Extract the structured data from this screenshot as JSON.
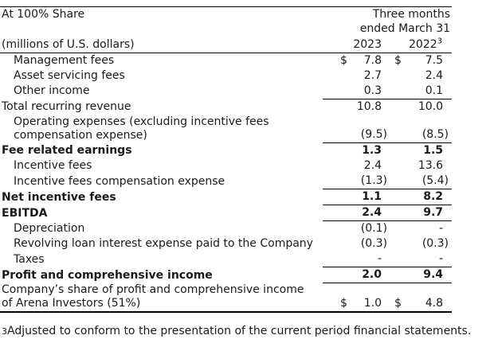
{
  "header": {
    "title": "At 100% Share",
    "period_line1": "Three months",
    "period_line2": "ended March 31",
    "unit_label": "(millions of U.S. dollars)",
    "col_2023": "2023",
    "col_2022": "2022",
    "col_2022_marker": "3"
  },
  "rows": [
    {
      "label": "Management fees",
      "d2023": "$",
      "v2023": "7.8",
      "d2022": "$",
      "v2022": "7.5",
      "indent": true,
      "bold": false,
      "underline": false,
      "twoline": false
    },
    {
      "label": "Asset servicing fees",
      "d2023": "",
      "v2023": "2.7",
      "d2022": "",
      "v2022": "2.4",
      "indent": true,
      "bold": false,
      "underline": false,
      "twoline": false
    },
    {
      "label": "Other income",
      "d2023": "",
      "v2023": "0.3",
      "d2022": "",
      "v2022": "0.1",
      "indent": true,
      "bold": false,
      "underline": true,
      "twoline": false
    },
    {
      "label": "Total recurring revenue",
      "d2023": "",
      "v2023": "10.8",
      "d2022": "",
      "v2022": "10.0",
      "indent": false,
      "bold": false,
      "underline": false,
      "twoline": false
    },
    {
      "label": "Operating expenses (excluding incentive fees\ncompensation expense)",
      "d2023": "",
      "v2023": "(9.5)",
      "d2022": "",
      "v2022": "(8.5)",
      "indent": true,
      "bold": false,
      "underline": true,
      "twoline": true
    },
    {
      "label": "Fee related earnings",
      "d2023": "",
      "v2023": "1.3",
      "d2022": "",
      "v2022": "1.5",
      "indent": false,
      "bold": true,
      "underline": false,
      "twoline": false
    },
    {
      "label": "Incentive fees",
      "d2023": "",
      "v2023": "2.4",
      "d2022": "",
      "v2022": "13.6",
      "indent": true,
      "bold": false,
      "underline": false,
      "twoline": false
    },
    {
      "label": "Incentive fees compensation expense",
      "d2023": "",
      "v2023": "(1.3)",
      "d2022": "",
      "v2022": "(5.4)",
      "indent": true,
      "bold": false,
      "underline": true,
      "twoline": false
    },
    {
      "label": "Net incentive fees",
      "d2023": "",
      "v2023": "1.1",
      "d2022": "",
      "v2022": "8.2",
      "indent": false,
      "bold": true,
      "underline": true,
      "twoline": false
    },
    {
      "label": "EBITDA",
      "d2023": "",
      "v2023": "2.4",
      "d2022": "",
      "v2022": "9.7",
      "indent": false,
      "bold": true,
      "underline": true,
      "twoline": false
    },
    {
      "label": "Depreciation",
      "d2023": "",
      "v2023": "(0.1)",
      "d2022": "",
      "v2022": "-",
      "indent": true,
      "bold": false,
      "underline": false,
      "twoline": false
    },
    {
      "label": "Revolving loan interest expense paid to the Company",
      "d2023": "",
      "v2023": "(0.3)",
      "d2022": "",
      "v2022": "(0.3)",
      "indent": true,
      "bold": false,
      "underline": false,
      "twoline": false
    },
    {
      "label": "Taxes",
      "d2023": "",
      "v2023": "-",
      "d2022": "",
      "v2022": "-",
      "indent": true,
      "bold": false,
      "underline": true,
      "twoline": false
    },
    {
      "label": "Profit and comprehensive income",
      "d2023": "",
      "v2023": "2.0",
      "d2022": "",
      "v2022": "9.4",
      "indent": false,
      "bold": true,
      "underline": true,
      "twoline": false
    },
    {
      "label": "Company’s share of profit and comprehensive income\nof Arena Investors (51%)",
      "d2023": "$",
      "v2023": "1.0",
      "d2022": "$",
      "v2022": "4.8",
      "indent": false,
      "bold": false,
      "underline": false,
      "twoline": true
    }
  ],
  "footnote": {
    "marker": "3",
    "text": "Adjusted to conform to the presentation of the current period financial statements."
  },
  "colors": {
    "text": "#1a1a1a",
    "rule": "#000000",
    "background": "#ffffff"
  }
}
